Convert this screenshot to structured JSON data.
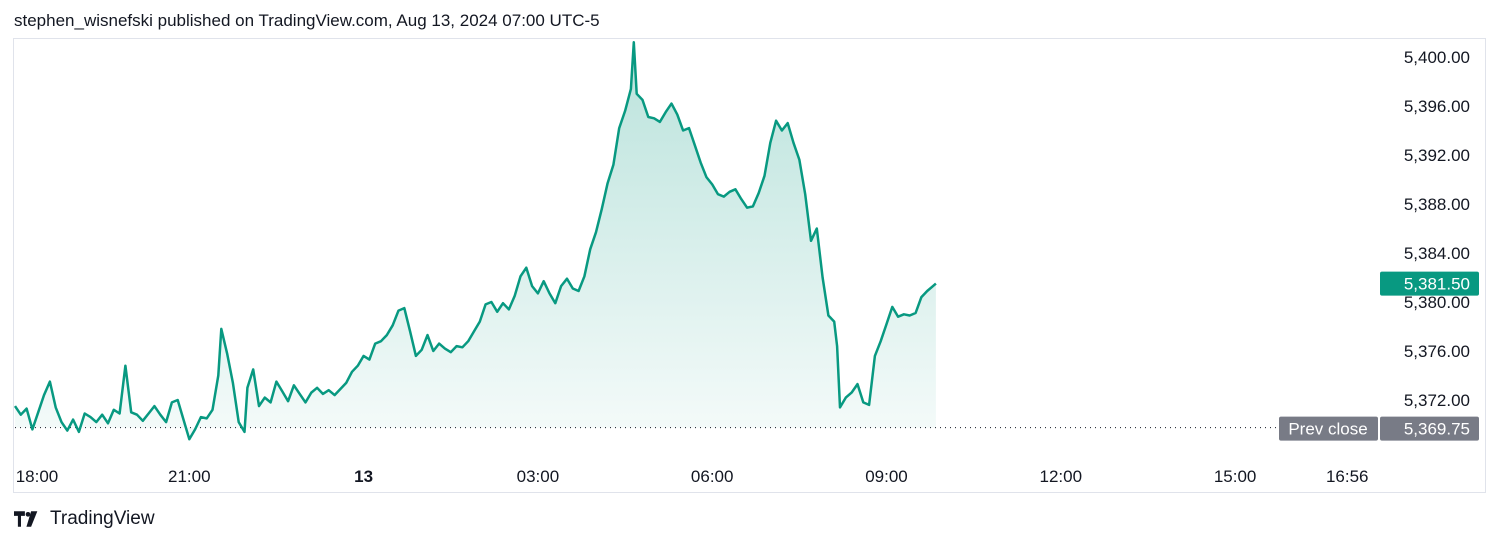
{
  "header": {
    "attribution": "stephen_wisnefski published on TradingView.com, Aug 13, 2024 07:00 UTC-5"
  },
  "footer": {
    "brand": "TradingView"
  },
  "colors": {
    "line": "#089981",
    "fill": "#089981",
    "prev_close_label": "#787b86",
    "text": "#131722"
  },
  "chart_data": {
    "type": "area",
    "title": "",
    "ylim": [
      5368,
      5402
    ],
    "y_ticks": [
      "5,400.00",
      "5,396.00",
      "5,392.00",
      "5,388.00",
      "5,384.00",
      "5,380.00",
      "5,376.00",
      "5,372.00"
    ],
    "y_tick_values": [
      5400,
      5396,
      5392,
      5388,
      5384,
      5380,
      5376,
      5372
    ],
    "x_ticks": [
      {
        "label": "18:00",
        "hour": 0,
        "bold": false
      },
      {
        "label": "21:00",
        "hour": 3,
        "bold": false
      },
      {
        "label": "13",
        "hour": 6,
        "bold": true
      },
      {
        "label": "03:00",
        "hour": 9,
        "bold": false
      },
      {
        "label": "06:00",
        "hour": 12,
        "bold": false
      },
      {
        "label": "09:00",
        "hour": 15,
        "bold": false
      },
      {
        "label": "12:00",
        "hour": 18,
        "bold": false
      },
      {
        "label": "15:00",
        "hour": 21,
        "bold": false
      },
      {
        "label": "16:56",
        "hour": 22.93,
        "bold": false
      }
    ],
    "x_range_hours": [
      0,
      24.5
    ],
    "x_unit": "hours since 18:00 Aug 12",
    "last_price": {
      "label": "5,381.50",
      "value": 5381.5
    },
    "prev_close": {
      "label": "Prev close",
      "value_label": "5,369.75",
      "value": 5369.75
    },
    "series": [
      {
        "points": [
          [
            0.0,
            5371.5
          ],
          [
            0.1,
            5370.8
          ],
          [
            0.2,
            5371.3
          ],
          [
            0.3,
            5369.6
          ],
          [
            0.4,
            5371.0
          ],
          [
            0.5,
            5372.4
          ],
          [
            0.6,
            5373.5
          ],
          [
            0.7,
            5371.4
          ],
          [
            0.8,
            5370.2
          ],
          [
            0.9,
            5369.5
          ],
          [
            1.0,
            5370.4
          ],
          [
            1.1,
            5369.4
          ],
          [
            1.2,
            5370.9
          ],
          [
            1.3,
            5370.6
          ],
          [
            1.4,
            5370.2
          ],
          [
            1.5,
            5370.8
          ],
          [
            1.6,
            5370.1
          ],
          [
            1.7,
            5371.2
          ],
          [
            1.8,
            5370.9
          ],
          [
            1.9,
            5374.8
          ],
          [
            2.0,
            5371.0
          ],
          [
            2.1,
            5370.8
          ],
          [
            2.2,
            5370.3
          ],
          [
            2.3,
            5370.9
          ],
          [
            2.4,
            5371.5
          ],
          [
            2.5,
            5370.8
          ],
          [
            2.6,
            5370.2
          ],
          [
            2.7,
            5371.8
          ],
          [
            2.8,
            5372.0
          ],
          [
            2.9,
            5370.4
          ],
          [
            3.0,
            5368.8
          ],
          [
            3.1,
            5369.6
          ],
          [
            3.2,
            5370.6
          ],
          [
            3.3,
            5370.5
          ],
          [
            3.4,
            5371.2
          ],
          [
            3.5,
            5374.0
          ],
          [
            3.55,
            5377.8
          ],
          [
            3.65,
            5375.8
          ],
          [
            3.75,
            5373.4
          ],
          [
            3.85,
            5370.2
          ],
          [
            3.95,
            5369.4
          ],
          [
            4.0,
            5373.0
          ],
          [
            4.1,
            5374.5
          ],
          [
            4.2,
            5371.5
          ],
          [
            4.3,
            5372.2
          ],
          [
            4.4,
            5371.8
          ],
          [
            4.5,
            5373.5
          ],
          [
            4.6,
            5372.7
          ],
          [
            4.7,
            5371.9
          ],
          [
            4.8,
            5373.2
          ],
          [
            4.9,
            5372.5
          ],
          [
            5.0,
            5371.8
          ],
          [
            5.1,
            5372.6
          ],
          [
            5.2,
            5373.0
          ],
          [
            5.3,
            5372.5
          ],
          [
            5.4,
            5372.8
          ],
          [
            5.5,
            5372.4
          ],
          [
            5.6,
            5372.9
          ],
          [
            5.7,
            5373.4
          ],
          [
            5.8,
            5374.3
          ],
          [
            5.9,
            5374.8
          ],
          [
            6.0,
            5375.6
          ],
          [
            6.1,
            5375.3
          ],
          [
            6.2,
            5376.6
          ],
          [
            6.3,
            5376.8
          ],
          [
            6.4,
            5377.3
          ],
          [
            6.5,
            5378.1
          ],
          [
            6.6,
            5379.3
          ],
          [
            6.7,
            5379.5
          ],
          [
            6.8,
            5377.6
          ],
          [
            6.9,
            5375.6
          ],
          [
            7.0,
            5376.1
          ],
          [
            7.1,
            5377.3
          ],
          [
            7.2,
            5376.0
          ],
          [
            7.3,
            5376.6
          ],
          [
            7.4,
            5376.2
          ],
          [
            7.5,
            5375.9
          ],
          [
            7.6,
            5376.4
          ],
          [
            7.7,
            5376.3
          ],
          [
            7.8,
            5376.8
          ],
          [
            7.9,
            5377.6
          ],
          [
            8.0,
            5378.4
          ],
          [
            8.1,
            5379.8
          ],
          [
            8.2,
            5380.0
          ],
          [
            8.3,
            5379.2
          ],
          [
            8.4,
            5379.9
          ],
          [
            8.5,
            5379.4
          ],
          [
            8.6,
            5380.5
          ],
          [
            8.7,
            5382.1
          ],
          [
            8.8,
            5382.8
          ],
          [
            8.9,
            5381.3
          ],
          [
            9.0,
            5380.7
          ],
          [
            9.1,
            5381.7
          ],
          [
            9.2,
            5380.7
          ],
          [
            9.3,
            5379.9
          ],
          [
            9.4,
            5381.3
          ],
          [
            9.5,
            5381.9
          ],
          [
            9.6,
            5381.1
          ],
          [
            9.7,
            5380.9
          ],
          [
            9.8,
            5382.1
          ],
          [
            9.9,
            5384.3
          ],
          [
            10.0,
            5385.7
          ],
          [
            10.1,
            5387.6
          ],
          [
            10.2,
            5389.7
          ],
          [
            10.3,
            5391.2
          ],
          [
            10.4,
            5394.2
          ],
          [
            10.5,
            5395.6
          ],
          [
            10.6,
            5397.4
          ],
          [
            10.65,
            5401.2
          ],
          [
            10.7,
            5397.0
          ],
          [
            10.8,
            5396.5
          ],
          [
            10.9,
            5395.1
          ],
          [
            11.0,
            5395.0
          ],
          [
            11.1,
            5394.7
          ],
          [
            11.2,
            5395.5
          ],
          [
            11.3,
            5396.2
          ],
          [
            11.4,
            5395.3
          ],
          [
            11.5,
            5394.0
          ],
          [
            11.6,
            5394.2
          ],
          [
            11.7,
            5392.8
          ],
          [
            11.8,
            5391.4
          ],
          [
            11.9,
            5390.2
          ],
          [
            12.0,
            5389.6
          ],
          [
            12.1,
            5388.8
          ],
          [
            12.2,
            5388.6
          ],
          [
            12.3,
            5389.0
          ],
          [
            12.4,
            5389.2
          ],
          [
            12.5,
            5388.4
          ],
          [
            12.6,
            5387.7
          ],
          [
            12.7,
            5387.8
          ],
          [
            12.8,
            5388.9
          ],
          [
            12.9,
            5390.3
          ],
          [
            13.0,
            5393.0
          ],
          [
            13.1,
            5394.8
          ],
          [
            13.2,
            5394.0
          ],
          [
            13.3,
            5394.6
          ],
          [
            13.4,
            5393.0
          ],
          [
            13.5,
            5391.6
          ],
          [
            13.6,
            5388.8
          ],
          [
            13.7,
            5385.0
          ],
          [
            13.8,
            5386.0
          ],
          [
            13.9,
            5382.0
          ],
          [
            14.0,
            5378.9
          ],
          [
            14.1,
            5378.4
          ],
          [
            14.15,
            5376.4
          ],
          [
            14.2,
            5371.4
          ],
          [
            14.3,
            5372.2
          ],
          [
            14.4,
            5372.6
          ],
          [
            14.5,
            5373.3
          ],
          [
            14.6,
            5371.8
          ],
          [
            14.7,
            5371.6
          ],
          [
            14.8,
            5375.6
          ],
          [
            14.9,
            5376.8
          ],
          [
            15.0,
            5378.2
          ],
          [
            15.1,
            5379.6
          ],
          [
            15.2,
            5378.8
          ],
          [
            15.3,
            5379.0
          ],
          [
            15.4,
            5378.9
          ],
          [
            15.5,
            5379.1
          ],
          [
            15.6,
            5380.4
          ],
          [
            15.7,
            5380.9
          ],
          [
            15.8,
            5381.3
          ],
          [
            15.85,
            5381.5
          ]
        ]
      }
    ]
  }
}
